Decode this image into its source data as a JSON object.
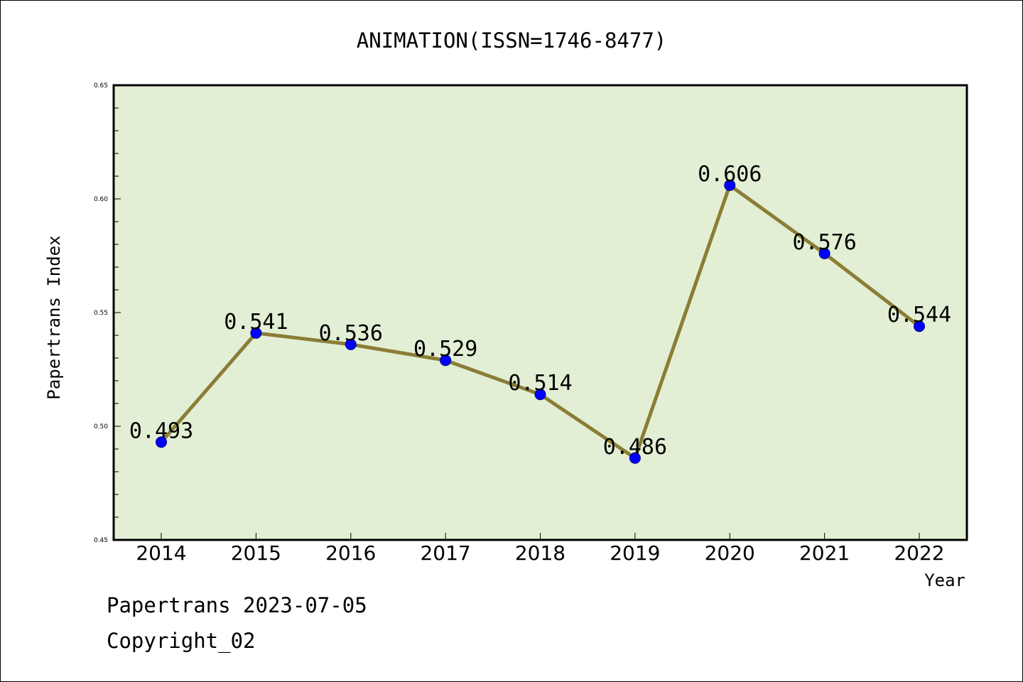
{
  "chart_data": {
    "type": "line",
    "title": "ANIMATION(ISSN=1746-8477)",
    "xlabel": "Year",
    "ylabel": "Papertrans Index",
    "categories": [
      "2014",
      "2015",
      "2016",
      "2017",
      "2018",
      "2019",
      "2020",
      "2021",
      "2022"
    ],
    "series": [
      {
        "values": [
          0.493,
          0.541,
          0.536,
          0.529,
          0.514,
          0.486,
          0.606,
          0.576,
          0.544
        ],
        "data_labels": [
          "0.493",
          "0.541",
          "0.536",
          "0.529",
          "0.514",
          "0.486",
          "0.606",
          "0.576",
          "0.544"
        ]
      }
    ],
    "ylim": [
      0.45,
      0.65
    ],
    "y_major_ticks": [
      0.45,
      0.5,
      0.55,
      0.6,
      0.65
    ],
    "y_tick_labels": [
      "0.45",
      "0.50",
      "0.55",
      "0.60",
      "0.65"
    ],
    "y_minor_step": 0.01,
    "grid": false,
    "legend": "none",
    "colors": {
      "plot_background": "#e2efd5",
      "line": "#8b7d35",
      "marker": "#0000ff",
      "marker_edge": "#000080",
      "axis": "#000000"
    }
  },
  "footer": {
    "line1": "Papertrans 2023-07-05",
    "line2": "Copyright_02"
  }
}
